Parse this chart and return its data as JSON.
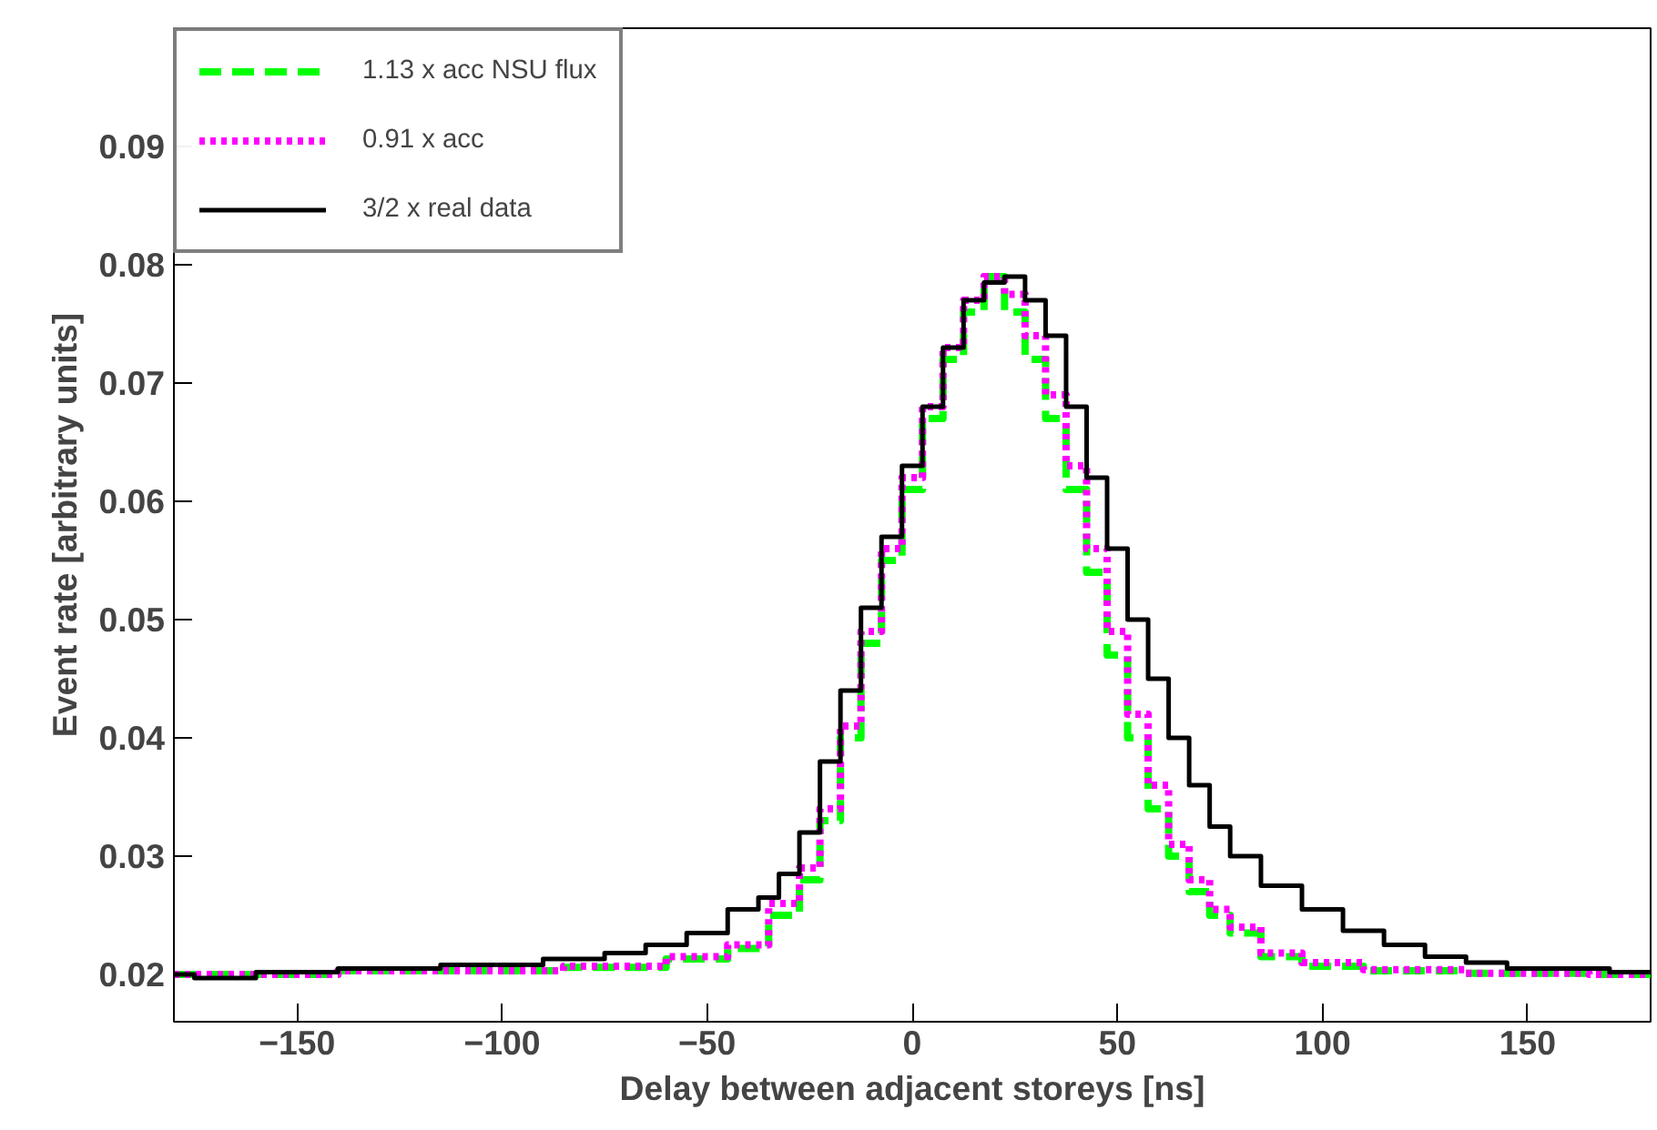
{
  "chart_data": {
    "type": "step",
    "xlabel": "Delay between adjacent storeys [ns]",
    "ylabel": "Event rate [arbitrary units]",
    "xlim": [
      -180,
      180
    ],
    "ylim": [
      0.016,
      0.1
    ],
    "xticks": [
      -150,
      -100,
      -50,
      0,
      50,
      100,
      150
    ],
    "yticks": [
      {
        "value": 0.02,
        "label": "0.02"
      },
      {
        "value": 0.03,
        "label": "0.03"
      },
      {
        "value": 0.04,
        "label": "0.04"
      },
      {
        "value": 0.05,
        "label": "0.05"
      },
      {
        "value": 0.06,
        "label": "0.06"
      },
      {
        "value": 0.07,
        "label": "0.07"
      },
      {
        "value": 0.08,
        "label": "0.08"
      },
      {
        "value": 0.09,
        "label": "0.09"
      }
    ],
    "grid": false,
    "legend": "top left",
    "series": [
      {
        "name": "1.13 x acc NSU flux",
        "color": "#00ff00",
        "line_style": "dashed",
        "x": [
          -180,
          -100,
          -70,
          -50,
          -40,
          -30,
          -25,
          -20,
          -15,
          -10,
          -5,
          0,
          5,
          10,
          15,
          20,
          25,
          30,
          35,
          40,
          45,
          50,
          55,
          60,
          65,
          70,
          75,
          80,
          90,
          100,
          120,
          150,
          180
        ],
        "values": [
          0.02,
          0.0203,
          0.0206,
          0.0213,
          0.0222,
          0.025,
          0.028,
          0.033,
          0.04,
          0.048,
          0.055,
          0.061,
          0.067,
          0.072,
          0.076,
          0.079,
          0.076,
          0.072,
          0.067,
          0.061,
          0.054,
          0.047,
          0.04,
          0.034,
          0.03,
          0.027,
          0.025,
          0.0235,
          0.0215,
          0.0207,
          0.0203,
          0.0201,
          0.02
        ]
      },
      {
        "name": "0.91 x acc",
        "color": "#ff00ff",
        "line_style": "dotted",
        "x": [
          -180,
          -100,
          -70,
          -50,
          -40,
          -30,
          -25,
          -20,
          -15,
          -10,
          -5,
          0,
          5,
          10,
          15,
          20,
          25,
          30,
          35,
          40,
          45,
          50,
          55,
          60,
          65,
          70,
          75,
          80,
          90,
          100,
          120,
          150,
          180
        ],
        "values": [
          0.02,
          0.0203,
          0.0207,
          0.0215,
          0.0225,
          0.026,
          0.029,
          0.034,
          0.041,
          0.049,
          0.056,
          0.062,
          0.068,
          0.073,
          0.077,
          0.079,
          0.0775,
          0.074,
          0.069,
          0.063,
          0.056,
          0.049,
          0.042,
          0.036,
          0.031,
          0.028,
          0.0255,
          0.024,
          0.0218,
          0.021,
          0.0204,
          0.0201,
          0.02
        ]
      },
      {
        "name": "3/2 x real data",
        "color": "#000000",
        "line_style": "solid",
        "x": [
          -180,
          -170,
          -150,
          -130,
          -100,
          -80,
          -70,
          -60,
          -50,
          -40,
          -35,
          -30,
          -25,
          -20,
          -15,
          -10,
          -5,
          0,
          5,
          10,
          15,
          20,
          25,
          30,
          35,
          40,
          45,
          50,
          55,
          60,
          65,
          70,
          75,
          80,
          90,
          100,
          110,
          120,
          130,
          140,
          150,
          160,
          180
        ],
        "values": [
          0.02,
          0.0197,
          0.0202,
          0.0205,
          0.0208,
          0.0213,
          0.0218,
          0.0225,
          0.0235,
          0.0255,
          0.0265,
          0.0285,
          0.032,
          0.038,
          0.044,
          0.051,
          0.057,
          0.063,
          0.068,
          0.073,
          0.077,
          0.0785,
          0.079,
          0.077,
          0.074,
          0.068,
          0.062,
          0.056,
          0.05,
          0.045,
          0.04,
          0.036,
          0.0325,
          0.03,
          0.0275,
          0.0255,
          0.0237,
          0.0225,
          0.0215,
          0.021,
          0.0205,
          0.0205,
          0.0202
        ]
      }
    ]
  }
}
